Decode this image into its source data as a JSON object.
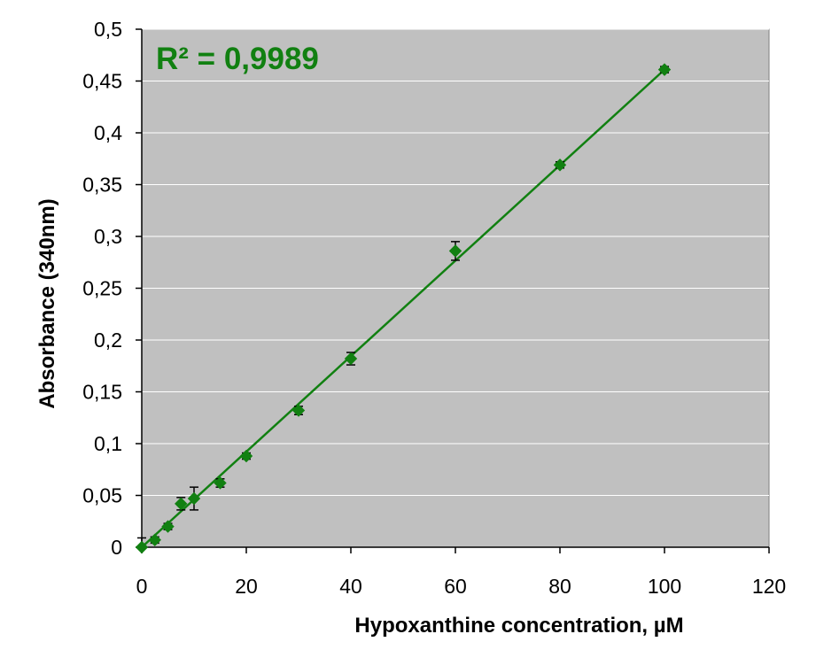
{
  "chart_data": {
    "type": "scatter",
    "xlabel": "Hypoxanthine concentration, µM",
    "ylabel": "Absorbance (340nm)",
    "annotation": "R² = 0,9989",
    "xlim": [
      0,
      120
    ],
    "ylim": [
      0,
      0.5
    ],
    "x_ticks": [
      0,
      20,
      40,
      60,
      80,
      100,
      120
    ],
    "x_tick_labels": [
      "0",
      "20",
      "40",
      "60",
      "80",
      "100",
      "120"
    ],
    "y_ticks": [
      0,
      0.05,
      0.1,
      0.15,
      0.2,
      0.25,
      0.3,
      0.35,
      0.4,
      0.45,
      0.5
    ],
    "y_tick_labels": [
      "0",
      "0,05",
      "0,1",
      "0,15",
      "0,2",
      "0,25",
      "0,3",
      "0,35",
      "0,4",
      "0,45",
      "0,5"
    ],
    "grid": true,
    "background_color": "#c0c0c0",
    "series_color": "#118011",
    "points": [
      {
        "x": 0,
        "y": 0.0,
        "err": 0.009
      },
      {
        "x": 2.5,
        "y": 0.007,
        "err": 0.003
      },
      {
        "x": 5,
        "y": 0.02,
        "err": 0.003
      },
      {
        "x": 7.5,
        "y": 0.042,
        "err": 0.006
      },
      {
        "x": 10,
        "y": 0.047,
        "err": 0.011
      },
      {
        "x": 15,
        "y": 0.062,
        "err": 0.004
      },
      {
        "x": 20,
        "y": 0.088,
        "err": 0.003
      },
      {
        "x": 30,
        "y": 0.132,
        "err": 0.004
      },
      {
        "x": 40,
        "y": 0.182,
        "err": 0.006
      },
      {
        "x": 60,
        "y": 0.286,
        "err": 0.009
      },
      {
        "x": 80,
        "y": 0.369,
        "err": 0.003
      },
      {
        "x": 100,
        "y": 0.461,
        "err": 0.003
      }
    ],
    "trendline": {
      "type": "linear",
      "x": [
        0,
        100
      ],
      "y": [
        0.0,
        0.461
      ]
    }
  }
}
